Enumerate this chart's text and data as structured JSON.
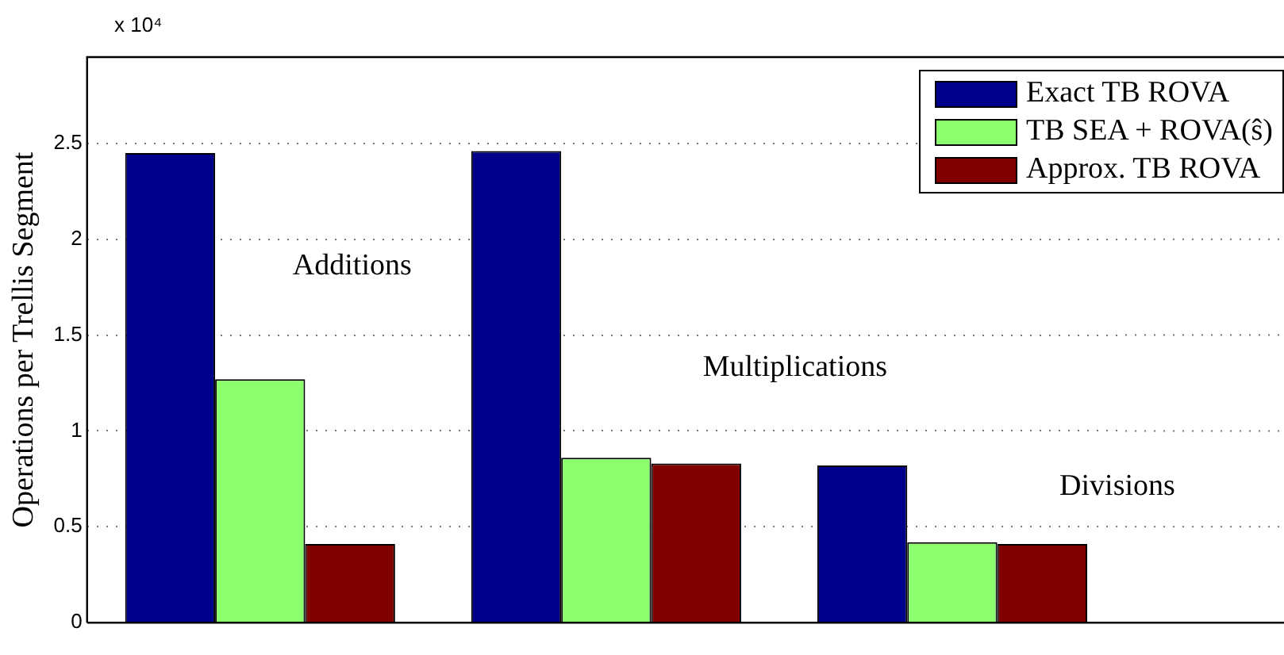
{
  "chart_data": {
    "type": "bar",
    "ylabel": "Operations per Trellis Segment",
    "categories": [
      null,
      null,
      null
    ],
    "series": [
      {
        "name": "Exact TB ROVA",
        "color": "#00008b",
        "values": [
          2.45,
          2.46,
          0.82
        ]
      },
      {
        "name": "TB SEA + ROVA(ŝ)",
        "color": "#8cff6e",
        "values": [
          1.27,
          0.86,
          0.42
        ]
      },
      {
        "name": "Approx. TB ROVA",
        "color": "#800000",
        "values": [
          0.41,
          0.83,
          0.41
        ]
      }
    ],
    "ylim": [
      0,
      2.95
    ],
    "yticks": [
      0,
      0.5,
      1,
      1.5,
      2,
      2.5
    ],
    "grid": "y",
    "legend": "top right",
    "annotations": [
      "x 10⁴",
      "Additions",
      "Multiplications",
      "Divisions"
    ]
  }
}
